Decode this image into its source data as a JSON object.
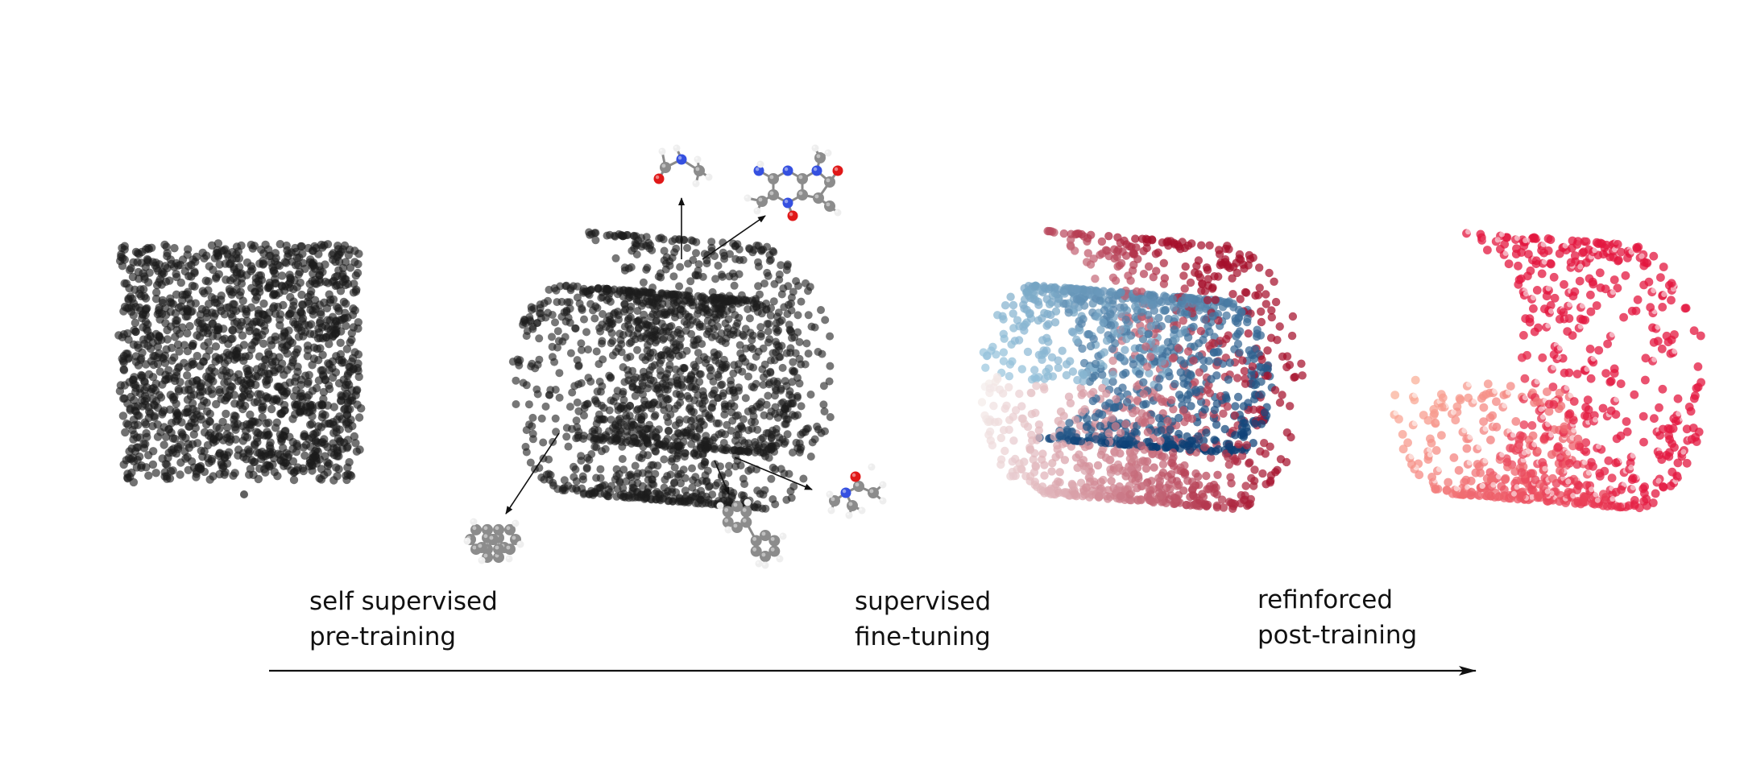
{
  "stages": [
    {
      "line1": "self supervised",
      "line2": "pre-training"
    },
    {
      "line1": "supervised",
      "line2": "fine-tuning"
    },
    {
      "line1": "refinforced",
      "line2": "post-training"
    }
  ],
  "colors": {
    "point_dark": "#1c1c1c",
    "blue_dark": "#0b3f75",
    "blue_light": "#9ecae1",
    "red_dark": "#a50f2b",
    "red_bright": "#e3173f",
    "red_light": "#fcbba1",
    "atom_carbon": "#8c8c8c",
    "atom_hydrogen": "#eeeeee",
    "atom_nitrogen": "#3550e0",
    "atom_oxygen": "#e01818",
    "arrow": "#111111"
  },
  "molecules": [
    {
      "name": "n-methylformamide-molecule"
    },
    {
      "name": "caffeine-molecule"
    },
    {
      "name": "polycyclic-aromatic-molecule"
    },
    {
      "name": "biphenyl-molecule"
    },
    {
      "name": "dimethylacetamide-molecule"
    }
  ]
}
